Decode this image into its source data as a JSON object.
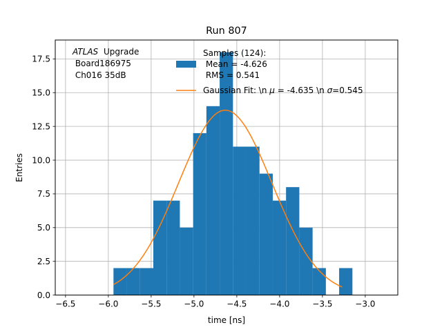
{
  "chart_data": {
    "type": "bar",
    "title": "Run 807",
    "xlabel": "time [ns]",
    "ylabel": "Entries",
    "xlim": [
      -6.62,
      -2.62
    ],
    "ylim": [
      0,
      18.9
    ],
    "grid": true,
    "x_ticks": [
      -6.5,
      -6.0,
      -5.5,
      -5.0,
      -4.5,
      -4.0,
      -3.5,
      -3.0
    ],
    "x_tick_labels": [
      "−6.5",
      "−6.0",
      "−5.5",
      "−5.0",
      "−4.5",
      "−4.0",
      "−3.5",
      "−3.0"
    ],
    "y_ticks": [
      0.0,
      2.5,
      5.0,
      7.5,
      10.0,
      12.5,
      15.0,
      17.5
    ],
    "y_tick_labels": [
      "0.0",
      "2.5",
      "5.0",
      "7.5",
      "10.0",
      "12.5",
      "15.0",
      "17.5"
    ],
    "histogram": {
      "name_lines": [
        "Samples (124):",
        " Mean = -4.626",
        " RMS = 0.541"
      ],
      "color": "#1f77b4",
      "bin_edges": [
        -5.94,
        -5.785,
        -5.63,
        -5.475,
        -5.32,
        -5.165,
        -5.01,
        -4.855,
        -4.7,
        -4.545,
        -4.39,
        -4.235,
        -4.08,
        -3.925,
        -3.77,
        -3.615,
        -3.46,
        -3.305,
        -3.15
      ],
      "counts": [
        2,
        2,
        2,
        7,
        7,
        5,
        12,
        14,
        18,
        11,
        11,
        9,
        7,
        8,
        5,
        2,
        0,
        2
      ]
    },
    "fit": {
      "name": "Gaussian Fit: \\n $\\mu$ = -4.635 \\n $\\sigma$=0.545",
      "color": "#ff7f0e",
      "mu": -4.635,
      "sigma": 0.545,
      "amplitude": 13.7,
      "x_range": [
        -5.94,
        -3.27
      ]
    },
    "legend_placement": "upper-right",
    "annotation_lines": [
      "Upgrade",
      " Board186975",
      " Ch016 35dB"
    ],
    "annotation_italic": "ATLAS"
  },
  "legend": {
    "hist_lines": [
      "Samples (124):",
      " Mean = -4.626",
      " RMS = 0.541"
    ],
    "fit_label_prefix": "Gaussian Fit: \\n ",
    "fit_mu_symbol": "μ",
    "fit_mu_text": " = -4.635 \\n ",
    "fit_sigma_symbol": "σ",
    "fit_sigma_text": "=0.545"
  }
}
